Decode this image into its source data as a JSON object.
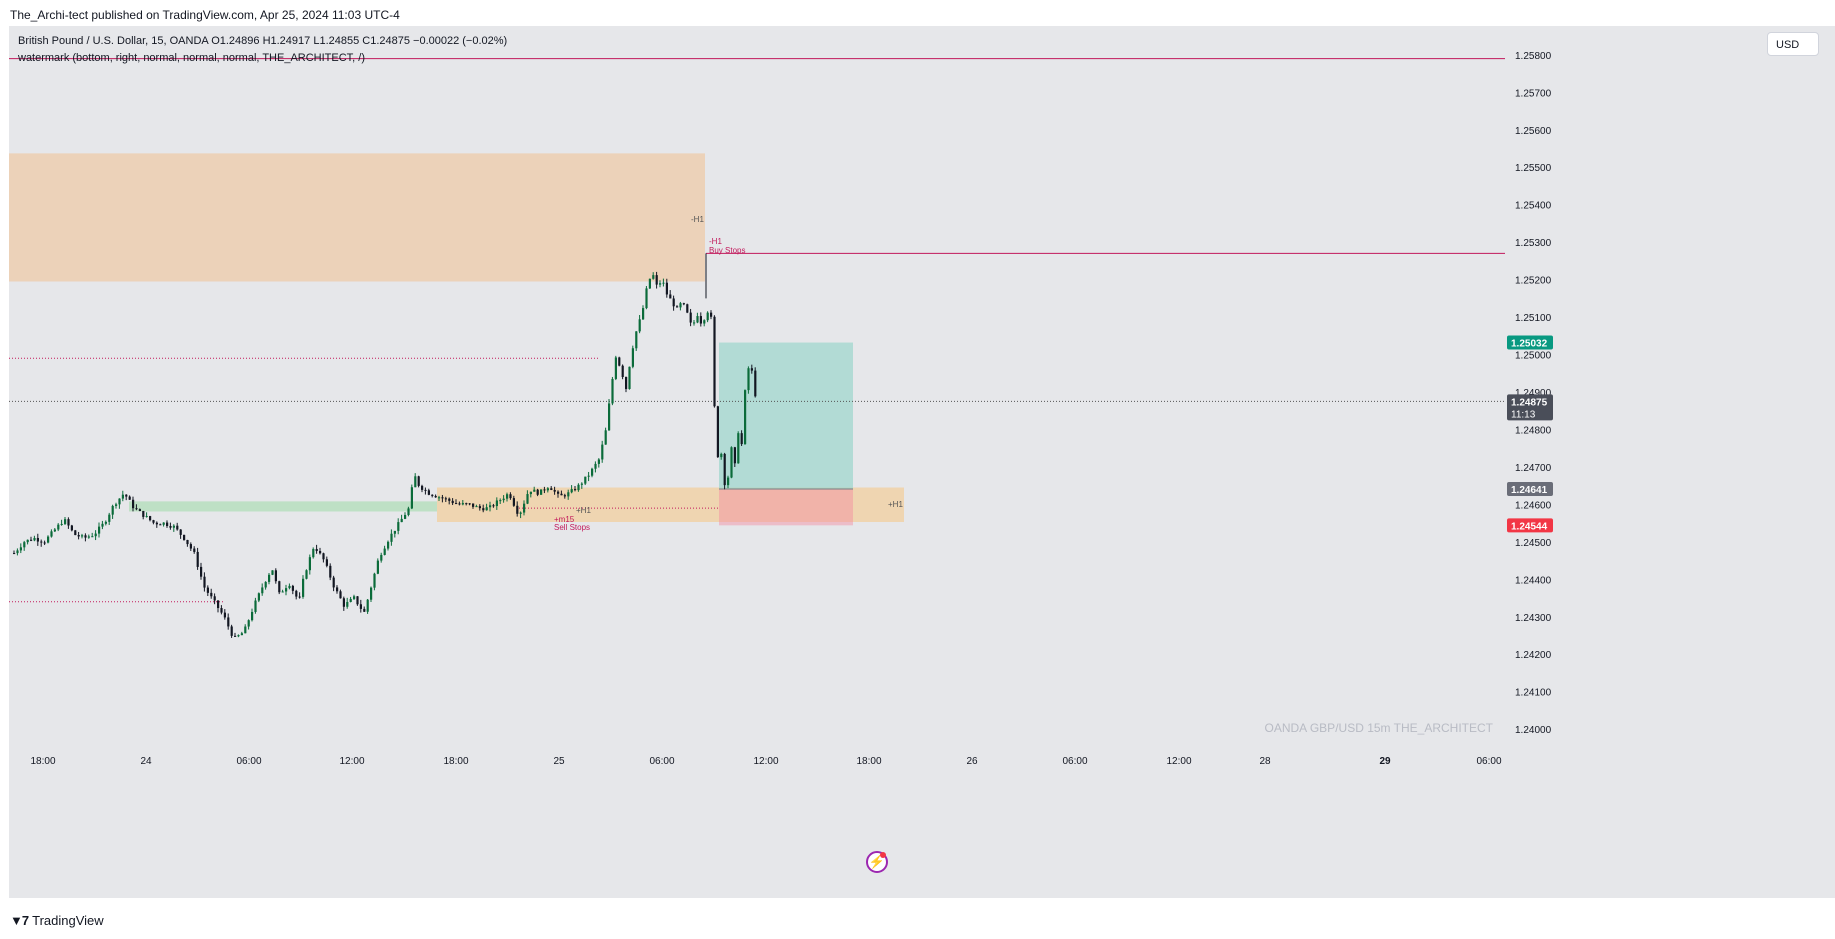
{
  "header": {
    "published_by": "The_Archi-tect published on TradingView.com, Apr 25, 2024 11:03 UTC-4"
  },
  "legend": {
    "line1": "British Pound / U.S. Dollar, 15, OANDA  O1.24896  H1.24917  L1.24855  C1.24875  −0.00022 (−0.02%)",
    "line2": "watermark (bottom, right, normal, normal, normal, THE_ARCHITECT, /)"
  },
  "currency_button": "USD",
  "footer": {
    "brand": "TradingView",
    "brand_icon": "tradingview-logo-icon"
  },
  "flash_icon": "lightning-icon",
  "chart_data": {
    "type": "candlestick",
    "symbol": "GBP/USD",
    "interval": "15m",
    "exchange": "OANDA",
    "watermark": "OANDA   GBP/USD 15m   THE_ARCHITECT",
    "y_ticks": [
      "1.25800",
      "1.25700",
      "1.25600",
      "1.25500",
      "1.25400",
      "1.25300",
      "1.25200",
      "1.25100",
      "1.25000",
      "1.24900",
      "1.24800",
      "1.24700",
      "1.24600",
      "1.24500",
      "1.24400",
      "1.24300",
      "1.24200",
      "1.24100",
      "1.24000"
    ],
    "y_range": [
      1.23955,
      1.25845
    ],
    "x_ticks": [
      "18:00",
      "24",
      "06:00",
      "12:00",
      "18:00",
      "25",
      "06:00",
      "12:00",
      "18:00",
      "26",
      "06:00",
      "12:00",
      "28",
      "29",
      "06:00"
    ],
    "price_labels": [
      {
        "text": "1.25032",
        "value": 1.25032,
        "color": "#089981"
      },
      {
        "text": "1.24875",
        "sub": "11:13",
        "value": 1.24875,
        "color": "#4a4e59"
      },
      {
        "text": "1.24641",
        "value": 1.24641,
        "color": "#6a6d78"
      },
      {
        "text": "1.24544",
        "value": 1.24544,
        "color": "#f23645"
      }
    ],
    "zones": [
      {
        "name": "supply-zone-h1",
        "color": "#f0c190",
        "value_top": 1.25537,
        "value_bottom": 1.25195
      },
      {
        "name": "demand-zone-green",
        "color": "#a9dbb1",
        "value_top": 1.24608,
        "value_bottom": 1.24581
      },
      {
        "name": "demand-zone-orange",
        "color": "#f5c98a",
        "value_top": 1.24645,
        "value_bottom": 1.24553
      }
    ],
    "position": {
      "entry": 1.24641,
      "target": 1.25032,
      "stop": 1.24544
    },
    "levels": [
      {
        "name": "top-line",
        "value": 1.2579,
        "color": "#c2185b",
        "style": "solid"
      },
      {
        "name": "buy-stops-line",
        "value": 1.2527,
        "color": "#c2185b",
        "style": "solid"
      },
      {
        "name": "upper-dotted-level",
        "value": 1.2499,
        "color": "#c2185b",
        "style": "dotted"
      },
      {
        "name": "current-price-line",
        "value": 1.24875,
        "color": "#555555",
        "style": "dotted"
      },
      {
        "name": "sell-stops-line",
        "value": 1.2459,
        "color": "#c2185b",
        "style": "dotted"
      },
      {
        "name": "lower-dotted-level",
        "value": 1.2434,
        "color": "#c2185b",
        "style": "dotted"
      }
    ],
    "annotations": [
      {
        "text": "-H1",
        "color": "#555555"
      },
      {
        "text": "-H1",
        "color": "#c2185b"
      },
      {
        "text": "Buy Stops",
        "color": "#c2185b"
      },
      {
        "text": "+H1",
        "color": "#555555"
      },
      {
        "text": "+m15",
        "color": "#c2185b"
      },
      {
        "text": "Sell Stops",
        "color": "#c2185b"
      },
      {
        "text": "+H1",
        "color": "#555555"
      }
    ],
    "close_path": [
      [
        0,
        1.2447
      ],
      [
        10,
        1.245
      ],
      [
        20,
        1.2451
      ],
      [
        30,
        1.245
      ],
      [
        40,
        1.2453
      ],
      [
        50,
        1.2456
      ],
      [
        60,
        1.2452
      ],
      [
        70,
        1.2451
      ],
      [
        80,
        1.2452
      ],
      [
        90,
        1.2455
      ],
      [
        100,
        1.246
      ],
      [
        110,
        1.2463
      ],
      [
        115,
        1.2461
      ],
      [
        120,
        1.2459
      ],
      [
        130,
        1.2457
      ],
      [
        140,
        1.2455
      ],
      [
        150,
        1.2455
      ],
      [
        160,
        1.2454
      ],
      [
        170,
        1.2451
      ],
      [
        180,
        1.2447
      ],
      [
        190,
        1.2438
      ],
      [
        200,
        1.2434
      ],
      [
        210,
        1.243
      ],
      [
        220,
        1.2424
      ],
      [
        230,
        1.2426
      ],
      [
        240,
        1.2433
      ],
      [
        250,
        1.2439
      ],
      [
        258,
        1.2443
      ],
      [
        265,
        1.2436
      ],
      [
        275,
        1.2439
      ],
      [
        285,
        1.2434
      ],
      [
        290,
        1.2441
      ],
      [
        300,
        1.2449
      ],
      [
        310,
        1.2445
      ],
      [
        320,
        1.2438
      ],
      [
        330,
        1.2433
      ],
      [
        340,
        1.2435
      ],
      [
        350,
        1.2431
      ],
      [
        355,
        1.2436
      ],
      [
        365,
        1.2446
      ],
      [
        375,
        1.2451
      ],
      [
        385,
        1.2455
      ],
      [
        395,
        1.2459
      ],
      [
        400,
        1.2468
      ],
      [
        405,
        1.2465
      ],
      [
        415,
        1.2463
      ],
      [
        425,
        1.2462
      ],
      [
        435,
        1.2461
      ],
      [
        445,
        1.246
      ],
      [
        455,
        1.246
      ],
      [
        465,
        1.2459
      ],
      [
        475,
        1.2459
      ],
      [
        485,
        1.2461
      ],
      [
        495,
        1.2463
      ],
      [
        505,
        1.2457
      ],
      [
        515,
        1.2464
      ],
      [
        525,
        1.2463
      ],
      [
        535,
        1.2465
      ],
      [
        545,
        1.2462
      ],
      [
        555,
        1.2463
      ],
      [
        565,
        1.2465
      ],
      [
        575,
        1.2468
      ],
      [
        585,
        1.2472
      ],
      [
        592,
        1.248
      ],
      [
        597,
        1.2491
      ],
      [
        602,
        1.25
      ],
      [
        608,
        1.2495
      ],
      [
        612,
        1.2491
      ],
      [
        617,
        1.25
      ],
      [
        622,
        1.2506
      ],
      [
        628,
        1.2511
      ],
      [
        633,
        1.2518
      ],
      [
        638,
        1.2522
      ],
      [
        643,
        1.2518
      ],
      [
        648,
        1.252
      ],
      [
        653,
        1.2516
      ],
      [
        658,
        1.2514
      ],
      [
        663,
        1.2512
      ],
      [
        668,
        1.2514
      ],
      [
        673,
        1.2511
      ],
      [
        678,
        1.2507
      ],
      [
        683,
        1.2511
      ],
      [
        688,
        1.2508
      ],
      [
        693,
        1.2512
      ],
      [
        698,
        1.2509
      ],
      [
        700,
        1.2488
      ],
      [
        703,
        1.2472
      ],
      [
        706,
        1.2476
      ],
      [
        709,
        1.247
      ],
      [
        712,
        1.2462
      ],
      [
        715,
        1.247
      ],
      [
        718,
        1.2476
      ],
      [
        721,
        1.247
      ],
      [
        724,
        1.248
      ],
      [
        727,
        1.2473
      ],
      [
        730,
        1.2488
      ],
      [
        733,
        1.2494
      ],
      [
        736,
        1.2499
      ],
      [
        739,
        1.2493
      ],
      [
        742,
        1.2488
      ]
    ]
  }
}
